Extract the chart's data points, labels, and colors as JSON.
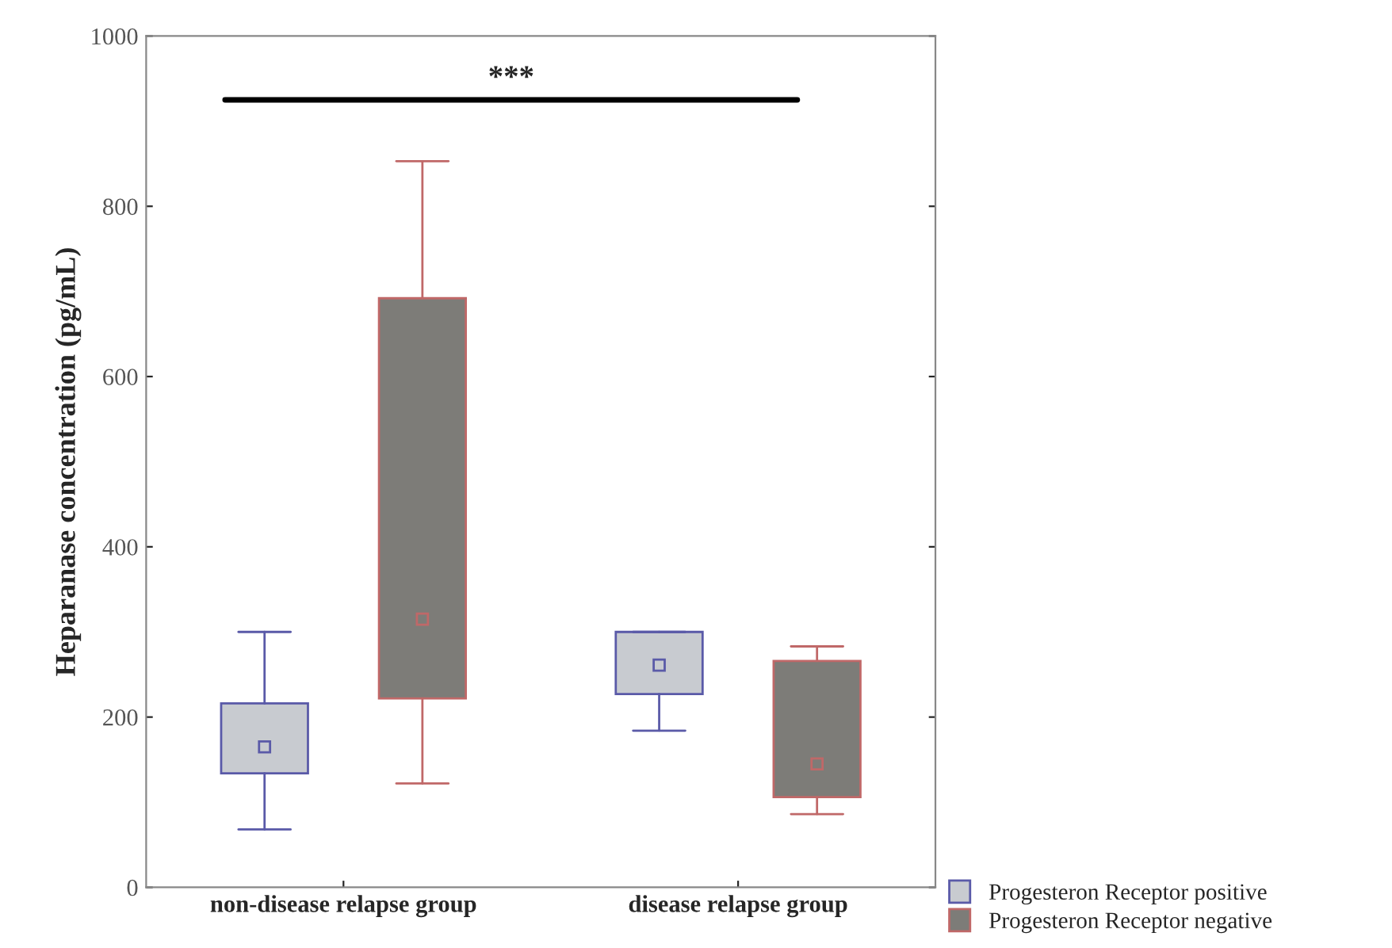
{
  "chart_data": {
    "type": "box",
    "ylabel": "Heparanase concentration (pg/mL)",
    "categories": [
      "non-disease relapse group",
      "disease relapse group"
    ],
    "ylim": [
      0,
      1000
    ],
    "yticks": [
      0,
      200,
      400,
      600,
      800,
      1000
    ],
    "grid": false,
    "legend": "bottom right",
    "marker": "square",
    "annotations": [
      "***"
    ],
    "series": [
      {
        "name": "Progesteron Receptor positive",
        "color": "#5a5aa8",
        "boxes": [
          {
            "low": 68,
            "q1": 134,
            "median": 165,
            "q3": 216,
            "high": 300
          },
          {
            "low": 184,
            "q1": 227,
            "median": 261,
            "q3": 300,
            "high": 300
          }
        ]
      },
      {
        "name": "Progesteron Receptor negative",
        "color": "#c06868",
        "boxes": [
          {
            "low": 122,
            "q1": 222,
            "median": 315,
            "q3": 692,
            "high": 853
          },
          {
            "low": 86,
            "q1": 106,
            "median": 145,
            "q3": 266,
            "high": 283
          }
        ]
      }
    ]
  }
}
